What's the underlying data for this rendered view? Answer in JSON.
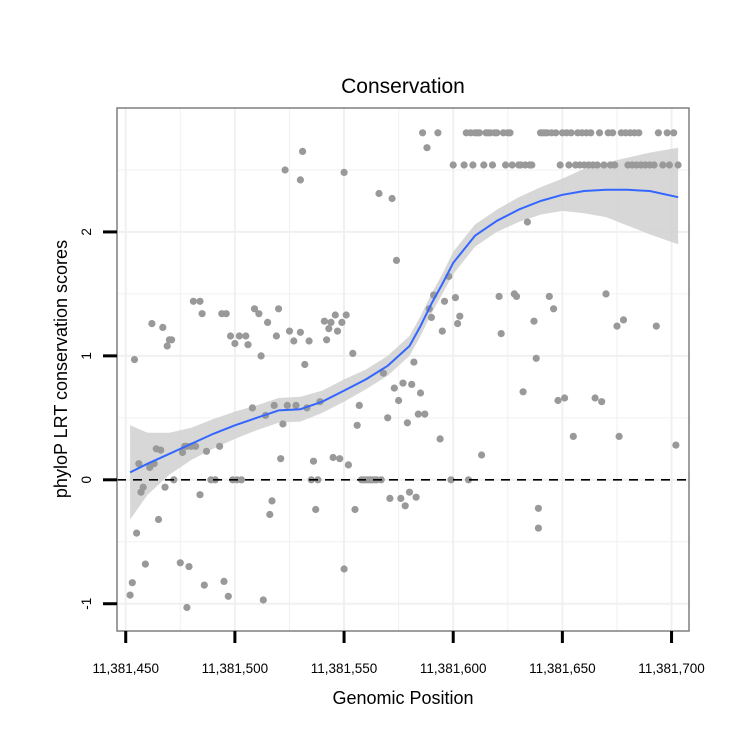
{
  "chart_data": {
    "type": "scatter",
    "title": "Conservation",
    "xlabel": "Genomic Position",
    "ylabel": "phyloP LRT conservation scores",
    "xlim": [
      11381446,
      11381708
    ],
    "ylim": [
      -1.22,
      3.0
    ],
    "xticks": [
      11381450,
      11381500,
      11381550,
      11381600,
      11381650,
      11381700
    ],
    "xtick_labels": [
      "11,381,450",
      "11,381,500",
      "11,381,550",
      "11,381,600",
      "11,381,650",
      "11,381,700"
    ],
    "yticks": [
      -1,
      0,
      1,
      2
    ],
    "ytick_labels": [
      "-1",
      "0",
      "1",
      "2"
    ],
    "grid": true,
    "reference_line_y": 0,
    "colors": {
      "points": "#999999",
      "smooth_line": "#3366ff",
      "ribbon": "#d0d0d0",
      "panel_border": "#7f7f7f",
      "grid": "#f0f0f0"
    },
    "points": [
      [
        11381452,
        -0.93
      ],
      [
        11381453,
        -0.83
      ],
      [
        11381454,
        0.97
      ],
      [
        11381455,
        -0.43
      ],
      [
        11381456,
        0.13
      ],
      [
        11381457,
        -0.1
      ],
      [
        11381458,
        -0.06
      ],
      [
        11381459,
        -0.68
      ],
      [
        11381461,
        0.1
      ],
      [
        11381462,
        1.26
      ],
      [
        11381463,
        0.13
      ],
      [
        11381464,
        0.25
      ],
      [
        11381465,
        -0.32
      ],
      [
        11381466,
        0.24
      ],
      [
        11381467,
        1.23
      ],
      [
        11381468,
        -0.06
      ],
      [
        11381469,
        1.08
      ],
      [
        11381470,
        1.13
      ],
      [
        11381471,
        1.13
      ],
      [
        11381472,
        0.0
      ],
      [
        11381475,
        -0.67
      ],
      [
        11381476,
        0.22
      ],
      [
        11381477,
        0.27
      ],
      [
        11381478,
        -1.03
      ],
      [
        11381478,
        0.27
      ],
      [
        11381479,
        -0.7
      ],
      [
        11381480,
        0.27
      ],
      [
        11381481,
        1.44
      ],
      [
        11381482,
        0.27
      ],
      [
        11381484,
        1.44
      ],
      [
        11381484,
        -0.12
      ],
      [
        11381485,
        1.34
      ],
      [
        11381486,
        -0.85
      ],
      [
        11381487,
        0.23
      ],
      [
        11381489,
        0.0
      ],
      [
        11381491,
        0.0
      ],
      [
        11381493,
        0.27
      ],
      [
        11381494,
        1.34
      ],
      [
        11381495,
        -0.82
      ],
      [
        11381496,
        1.34
      ],
      [
        11381497,
        -0.94
      ],
      [
        11381498,
        1.16
      ],
      [
        11381499,
        0.0
      ],
      [
        11381500,
        1.1
      ],
      [
        11381501,
        0.0
      ],
      [
        11381502,
        1.16
      ],
      [
        11381503,
        0.0
      ],
      [
        11381505,
        1.16
      ],
      [
        11381506,
        1.09
      ],
      [
        11381508,
        0.58
      ],
      [
        11381509,
        1.38
      ],
      [
        11381511,
        1.34
      ],
      [
        11381512,
        1.0
      ],
      [
        11381513,
        -0.97
      ],
      [
        11381514,
        0.52
      ],
      [
        11381515,
        1.27
      ],
      [
        11381516,
        -0.28
      ],
      [
        11381517,
        -0.17
      ],
      [
        11381518,
        0.6
      ],
      [
        11381519,
        1.16
      ],
      [
        11381520,
        1.38
      ],
      [
        11381521,
        0.17
      ],
      [
        11381522,
        0.45
      ],
      [
        11381523,
        2.5
      ],
      [
        11381524,
        0.6
      ],
      [
        11381525,
        1.2
      ],
      [
        11381527,
        1.12
      ],
      [
        11381528,
        0.6
      ],
      [
        11381530,
        1.19
      ],
      [
        11381530,
        2.42
      ],
      [
        11381531,
        2.65
      ],
      [
        11381532,
        0.93
      ],
      [
        11381533,
        0.58
      ],
      [
        11381534,
        1.12
      ],
      [
        11381535,
        0.0
      ],
      [
        11381536,
        0.15
      ],
      [
        11381537,
        -0.24
      ],
      [
        11381538,
        0.0
      ],
      [
        11381539,
        0.63
      ],
      [
        11381541,
        1.28
      ],
      [
        11381542,
        1.13
      ],
      [
        11381543,
        1.22
      ],
      [
        11381544,
        1.27
      ],
      [
        11381545,
        0.18
      ],
      [
        11381546,
        1.33
      ],
      [
        11381547,
        1.2
      ],
      [
        11381548,
        0.17
      ],
      [
        11381549,
        1.27
      ],
      [
        11381550,
        -0.72
      ],
      [
        11381550,
        2.48
      ],
      [
        11381551,
        1.33
      ],
      [
        11381552,
        0.12
      ],
      [
        11381554,
        1.02
      ],
      [
        11381555,
        -0.24
      ],
      [
        11381556,
        0.44
      ],
      [
        11381557,
        0.6
      ],
      [
        11381558,
        0.0
      ],
      [
        11381559,
        0.0
      ],
      [
        11381560,
        0.0
      ],
      [
        11381561,
        0.0
      ],
      [
        11381562,
        0.0
      ],
      [
        11381563,
        0.0
      ],
      [
        11381564,
        0.0
      ],
      [
        11381565,
        0.0
      ],
      [
        11381566,
        2.31
      ],
      [
        11381567,
        0.0
      ],
      [
        11381568,
        0.86
      ],
      [
        11381570,
        0.5
      ],
      [
        11381571,
        -0.15
      ],
      [
        11381572,
        2.27
      ],
      [
        11381573,
        0.74
      ],
      [
        11381574,
        1.77
      ],
      [
        11381575,
        0.64
      ],
      [
        11381576,
        -0.15
      ],
      [
        11381577,
        0.78
      ],
      [
        11381578,
        -0.21
      ],
      [
        11381579,
        0.46
      ],
      [
        11381580,
        -0.1
      ],
      [
        11381581,
        0.77
      ],
      [
        11381582,
        0.95
      ],
      [
        11381583,
        -0.14
      ],
      [
        11381584,
        0.53
      ],
      [
        11381585,
        0.7
      ],
      [
        11381586,
        2.8
      ],
      [
        11381587,
        0.53
      ],
      [
        11381588,
        2.68
      ],
      [
        11381589,
        1.38
      ],
      [
        11381590,
        1.31
      ],
      [
        11381591,
        1.49
      ],
      [
        11381593,
        2.8
      ],
      [
        11381594,
        0.33
      ],
      [
        11381595,
        1.2
      ],
      [
        11381596,
        1.44
      ],
      [
        11381598,
        1.64
      ],
      [
        11381599,
        0.0
      ],
      [
        11381600,
        2.54
      ],
      [
        11381601,
        1.47
      ],
      [
        11381602,
        1.26
      ],
      [
        11381603,
        1.32
      ],
      [
        11381605,
        2.54
      ],
      [
        11381606,
        2.8
      ],
      [
        11381607,
        0.0
      ],
      [
        11381608,
        2.8
      ],
      [
        11381609,
        2.54
      ],
      [
        11381610,
        2.8
      ],
      [
        11381611,
        2.8
      ],
      [
        11381612,
        2.8
      ],
      [
        11381613,
        0.2
      ],
      [
        11381614,
        2.54
      ],
      [
        11381615,
        2.8
      ],
      [
        11381616,
        2.8
      ],
      [
        11381617,
        2.8
      ],
      [
        11381618,
        2.54
      ],
      [
        11381619,
        2.8
      ],
      [
        11381620,
        2.8
      ],
      [
        11381621,
        1.48
      ],
      [
        11381622,
        1.18
      ],
      [
        11381623,
        2.8
      ],
      [
        11381624,
        2.54
      ],
      [
        11381625,
        2.8
      ],
      [
        11381626,
        2.8
      ],
      [
        11381627,
        2.54
      ],
      [
        11381628,
        1.5
      ],
      [
        11381629,
        1.48
      ],
      [
        11381630,
        2.54
      ],
      [
        11381631,
        2.54
      ],
      [
        11381632,
        0.71
      ],
      [
        11381633,
        2.54
      ],
      [
        11381634,
        2.08
      ],
      [
        11381635,
        2.54
      ],
      [
        11381636,
        2.54
      ],
      [
        11381637,
        1.28
      ],
      [
        11381638,
        0.98
      ],
      [
        11381639,
        -0.39
      ],
      [
        11381639,
        -0.23
      ],
      [
        11381640,
        2.8
      ],
      [
        11381641,
        2.8
      ],
      [
        11381642,
        2.8
      ],
      [
        11381643,
        2.8
      ],
      [
        11381644,
        1.48
      ],
      [
        11381645,
        2.8
      ],
      [
        11381646,
        1.38
      ],
      [
        11381647,
        2.8
      ],
      [
        11381648,
        0.64
      ],
      [
        11381649,
        2.54
      ],
      [
        11381650,
        2.8
      ],
      [
        11381651,
        0.66
      ],
      [
        11381652,
        2.8
      ],
      [
        11381653,
        2.54
      ],
      [
        11381654,
        2.8
      ],
      [
        11381655,
        0.35
      ],
      [
        11381656,
        2.54
      ],
      [
        11381657,
        2.8
      ],
      [
        11381658,
        2.54
      ],
      [
        11381659,
        2.8
      ],
      [
        11381660,
        2.54
      ],
      [
        11381661,
        2.8
      ],
      [
        11381662,
        2.54
      ],
      [
        11381663,
        2.8
      ],
      [
        11381664,
        2.54
      ],
      [
        11381665,
        0.66
      ],
      [
        11381666,
        2.54
      ],
      [
        11381667,
        2.8
      ],
      [
        11381668,
        0.63
      ],
      [
        11381669,
        2.54
      ],
      [
        11381670,
        1.5
      ],
      [
        11381671,
        2.8
      ],
      [
        11381672,
        2.54
      ],
      [
        11381673,
        2.8
      ],
      [
        11381674,
        2.54
      ],
      [
        11381675,
        1.24
      ],
      [
        11381676,
        0.35
      ],
      [
        11381677,
        2.8
      ],
      [
        11381678,
        1.29
      ],
      [
        11381679,
        2.8
      ],
      [
        11381680,
        2.54
      ],
      [
        11381681,
        2.8
      ],
      [
        11381682,
        2.54
      ],
      [
        11381683,
        2.8
      ],
      [
        11381684,
        2.54
      ],
      [
        11381685,
        2.8
      ],
      [
        11381686,
        2.54
      ],
      [
        11381688,
        2.54
      ],
      [
        11381690,
        2.54
      ],
      [
        11381692,
        2.54
      ],
      [
        11381693,
        1.24
      ],
      [
        11381694,
        2.8
      ],
      [
        11381696,
        2.54
      ],
      [
        11381698,
        2.8
      ],
      [
        11381699,
        2.54
      ],
      [
        11381701,
        2.8
      ],
      [
        11381702,
        0.28
      ],
      [
        11381703,
        2.54
      ]
    ],
    "smooth": {
      "x": [
        11381452,
        11381460,
        11381470,
        11381480,
        11381490,
        11381500,
        11381510,
        11381520,
        11381530,
        11381540,
        11381550,
        11381560,
        11381570,
        11381580,
        11381585,
        11381590,
        11381595,
        11381600,
        11381610,
        11381620,
        11381630,
        11381640,
        11381650,
        11381660,
        11381670,
        11381680,
        11381690,
        11381703
      ],
      "y": [
        0.06,
        0.13,
        0.21,
        0.29,
        0.37,
        0.44,
        0.5,
        0.56,
        0.57,
        0.63,
        0.72,
        0.81,
        0.92,
        1.08,
        1.24,
        1.42,
        1.58,
        1.75,
        1.97,
        2.09,
        2.18,
        2.25,
        2.3,
        2.33,
        2.34,
        2.34,
        2.33,
        2.28
      ],
      "lower": [
        -0.32,
        -0.12,
        0.04,
        0.16,
        0.25,
        0.33,
        0.4,
        0.46,
        0.47,
        0.54,
        0.63,
        0.73,
        0.84,
        1.0,
        1.16,
        1.34,
        1.5,
        1.66,
        1.88,
        2.0,
        2.08,
        2.14,
        2.17,
        2.15,
        2.12,
        2.05,
        1.98,
        1.9
      ],
      "upper": [
        0.44,
        0.38,
        0.38,
        0.42,
        0.49,
        0.55,
        0.6,
        0.66,
        0.67,
        0.72,
        0.81,
        0.89,
        1.0,
        1.16,
        1.32,
        1.5,
        1.66,
        1.84,
        2.06,
        2.18,
        2.28,
        2.36,
        2.43,
        2.51,
        2.56,
        2.6,
        2.64,
        2.68
      ]
    }
  }
}
